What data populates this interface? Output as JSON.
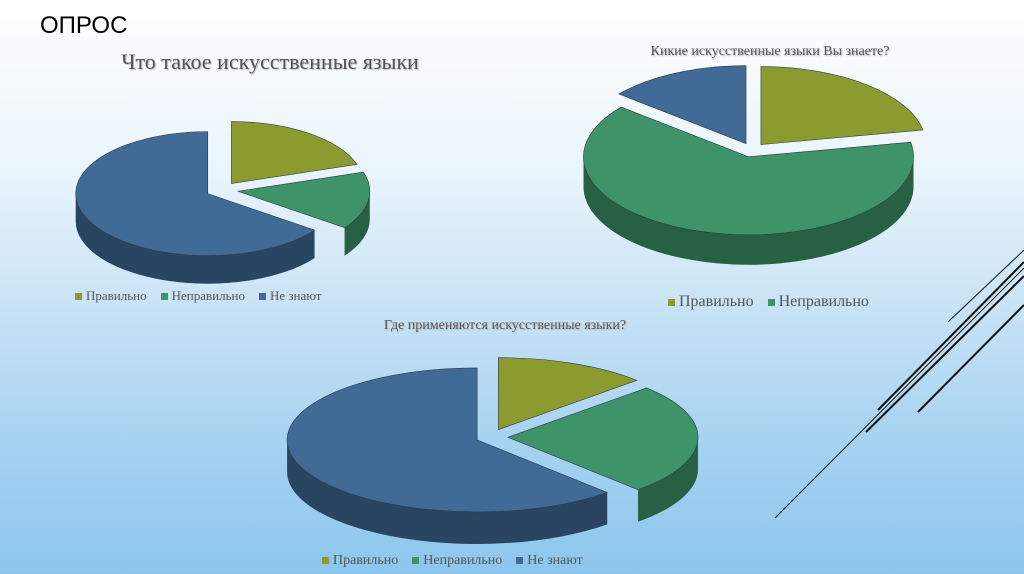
{
  "slide": {
    "title": "ОПРОС"
  },
  "chart_data": [
    {
      "type": "pie3d",
      "title": "Что такое искусственные языки",
      "categories": [
        "Правильно",
        "Неправильно",
        "Не знают"
      ],
      "values": [
        20,
        15,
        65
      ],
      "colors": [
        "#8c9b2f",
        "#3e9468",
        "#416a96"
      ]
    },
    {
      "type": "pie3d",
      "title": "Кикие искусственные языки Вы знаете?",
      "categories": [
        "Правильно",
        "Неправильно",
        null
      ],
      "values": [
        22,
        64,
        14
      ],
      "colors": [
        "#8c9b2f",
        "#3e9468",
        "#416a96"
      ]
    },
    {
      "type": "pie3d",
      "title": "Где применяются искусственные языки?",
      "categories": [
        "Правильно",
        "Неправильно",
        "Не знают"
      ],
      "values": [
        13,
        25,
        62
      ],
      "colors": [
        "#8c9b2f",
        "#3e9468",
        "#416a96"
      ]
    }
  ]
}
